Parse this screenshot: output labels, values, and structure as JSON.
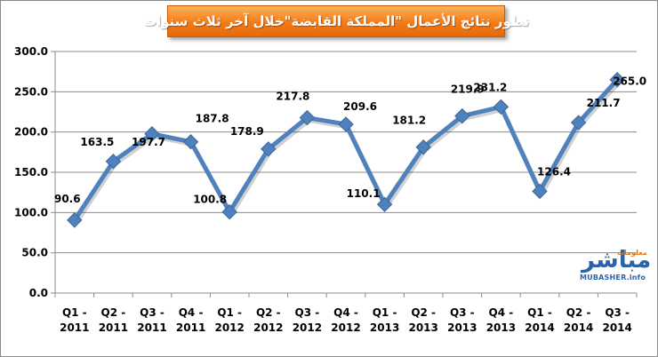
{
  "chart_data": {
    "type": "line",
    "title": "تطور نتائج الأعمال \"المملكة القابضة\"خلال آخر ثلاث سنوات",
    "categories": [
      [
        "Q1 -",
        "2011"
      ],
      [
        "Q2 -",
        "2011"
      ],
      [
        "Q3 -",
        "2011"
      ],
      [
        "Q4 -",
        "2011"
      ],
      [
        "Q1 -",
        "2012"
      ],
      [
        "Q2 -",
        "2012"
      ],
      [
        "Q3 -",
        "2012"
      ],
      [
        "Q4 -",
        "2012"
      ],
      [
        "Q1 -",
        "2013"
      ],
      [
        "Q2 -",
        "2013"
      ],
      [
        "Q3 -",
        "2013"
      ],
      [
        "Q4 -",
        "2013"
      ],
      [
        "Q1 -",
        "2014"
      ],
      [
        "Q2 -",
        "2014"
      ],
      [
        "Q3 -",
        "2014"
      ]
    ],
    "values": [
      90.6,
      163.5,
      197.7,
      187.8,
      100.8,
      178.9,
      217.8,
      209.6,
      110.1,
      181.2,
      219.9,
      231.2,
      126.4,
      211.7,
      265.0
    ],
    "value_labels": [
      "90.6",
      "163.5",
      "197.7",
      "187.8",
      "100.8",
      "178.9",
      "217.8",
      "209.6",
      "110.1",
      "181.2",
      "219.9",
      "231.2",
      "126.4",
      "211.7",
      "265.0"
    ],
    "ylim": [
      0,
      300
    ],
    "yticks": [
      "0.0",
      "50.0",
      "100.0",
      "150.0",
      "200.0",
      "250.0",
      "300.0"
    ],
    "grid": true,
    "xlabel": "",
    "ylabel": "",
    "line_color": "#4f81bd",
    "marker": "diamond"
  },
  "logo": {
    "arabic": "مباشر",
    "small_arabic": "معلومات",
    "latin": "MUBASHER.info"
  }
}
